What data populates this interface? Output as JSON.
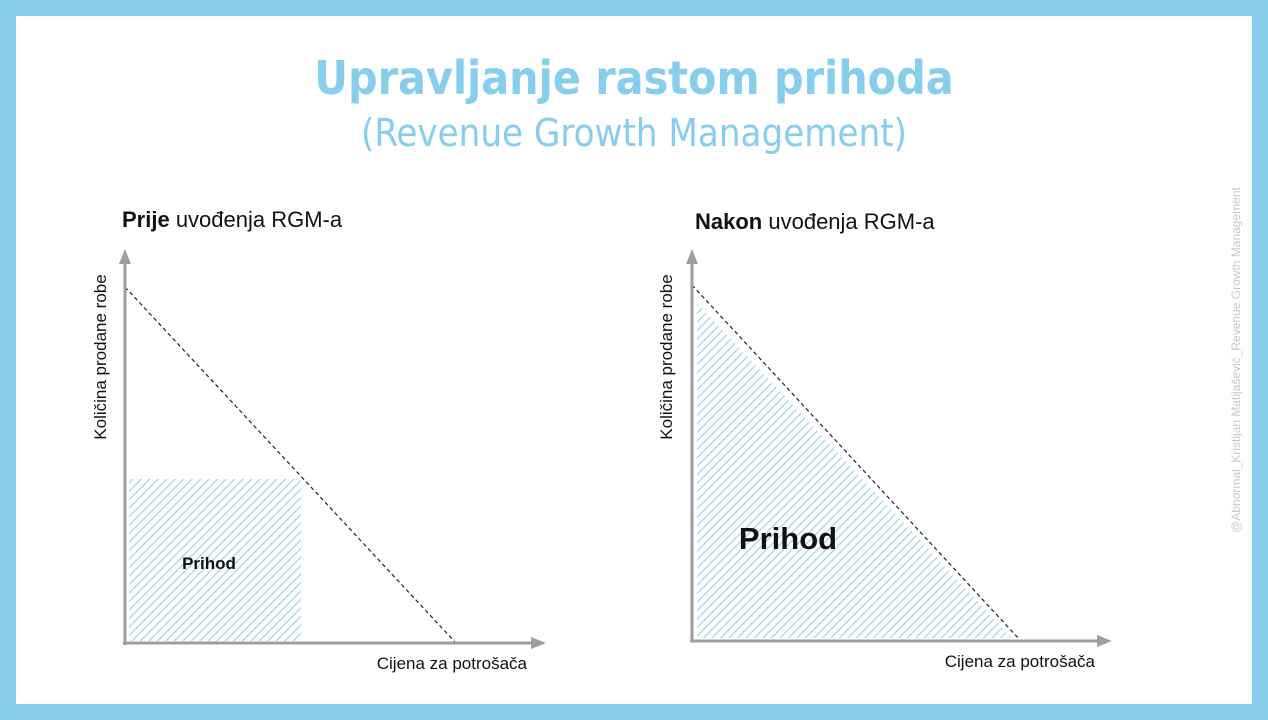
{
  "title": "Upravljanje rastom prihoda",
  "subtitle": "(Revenue Growth Management)",
  "watermark": "@Abnormal_Kristijan Matijašević_Revenue Growth Management",
  "panels": [
    {
      "heading_bold": "Prije",
      "heading_rest": " uvođenja RGM-a",
      "ylabel": "Količina prodane robe",
      "xlabel": "Cijena za potrošača",
      "area_label": "Prihod"
    },
    {
      "heading_bold": "Nakon",
      "heading_rest": " uvođenja RGM-a",
      "ylabel": "Količina prodane robe",
      "xlabel": "Cijena za potrošača",
      "area_label": "Prihod"
    }
  ],
  "colors": {
    "frame": "#87cdec",
    "title": "#87cdec",
    "axis": "#9e9e9e",
    "hatch": "#9fd4e4",
    "text": "#111111"
  }
}
